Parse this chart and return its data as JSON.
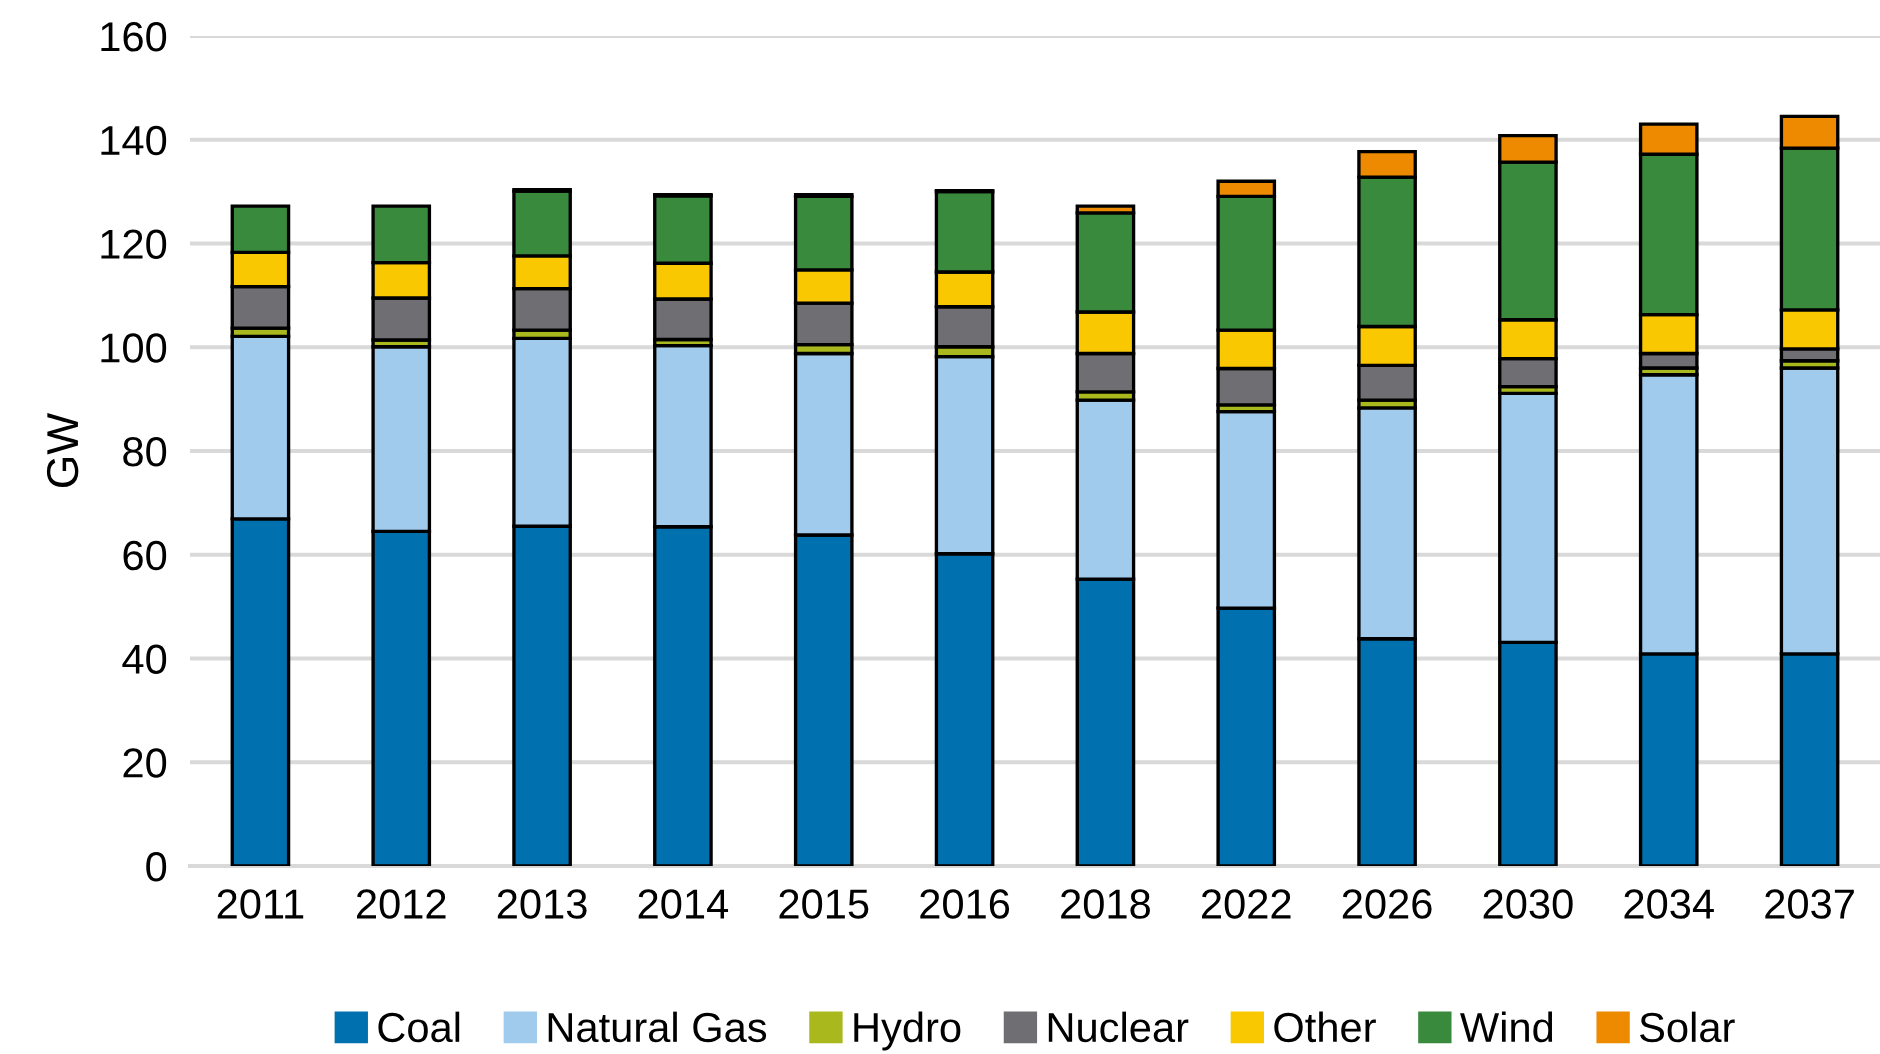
{
  "chart_data": {
    "type": "bar",
    "stacked": true,
    "ylabel": "GW",
    "categories": [
      "2011",
      "2012",
      "2013",
      "2014",
      "2015",
      "2016",
      "2018",
      "2022",
      "2026",
      "2030",
      "2034",
      "2037"
    ],
    "series": [
      {
        "name": "Coal",
        "color": "#0070ae",
        "values": [
          66.9,
          64.5,
          65.5,
          65.4,
          63.8,
          60.2,
          55.3,
          49.7,
          43.8,
          43.1,
          40.9,
          40.9
        ]
      },
      {
        "name": "Natural Gas",
        "color": "#a0cbec",
        "values": [
          35.2,
          35.6,
          36.2,
          34.9,
          35,
          38,
          34.5,
          37.9,
          44.5,
          48,
          53.8,
          55.1
        ]
      },
      {
        "name": "Hydro",
        "color": "#a9b81d",
        "values": [
          1.6,
          1.3,
          1.6,
          1.2,
          1.7,
          1.9,
          1.6,
          1.3,
          1.5,
          1.3,
          1.3,
          1.4
        ]
      },
      {
        "name": "Nuclear",
        "color": "#6e6e73",
        "values": [
          8,
          8.1,
          8,
          7.8,
          8,
          7.7,
          7.4,
          7,
          6.7,
          5.4,
          2.8,
          2.3
        ]
      },
      {
        "name": "Other",
        "color": "#fac800",
        "values": [
          6.6,
          6.8,
          6.3,
          6.9,
          6.4,
          6.7,
          8,
          7.4,
          7.5,
          7.5,
          7.5,
          7.5
        ]
      },
      {
        "name": "Wind",
        "color": "#3a8a3e",
        "values": [
          8.9,
          10.9,
          12.5,
          13,
          14.2,
          15.5,
          19.1,
          25.8,
          28.8,
          30.4,
          30.9,
          31.2
        ]
      },
      {
        "name": "Solar",
        "color": "#ee8a00",
        "values": [
          null,
          null,
          0.3,
          0.2,
          0.3,
          0.2,
          1.3,
          2.9,
          4.9,
          5.1,
          5.8,
          6.1
        ]
      }
    ],
    "ylim": [
      0,
      160
    ],
    "yticks": [
      0,
      20,
      40,
      60,
      80,
      100,
      120,
      140,
      160
    ],
    "grid": "y",
    "legend": "bottom"
  }
}
